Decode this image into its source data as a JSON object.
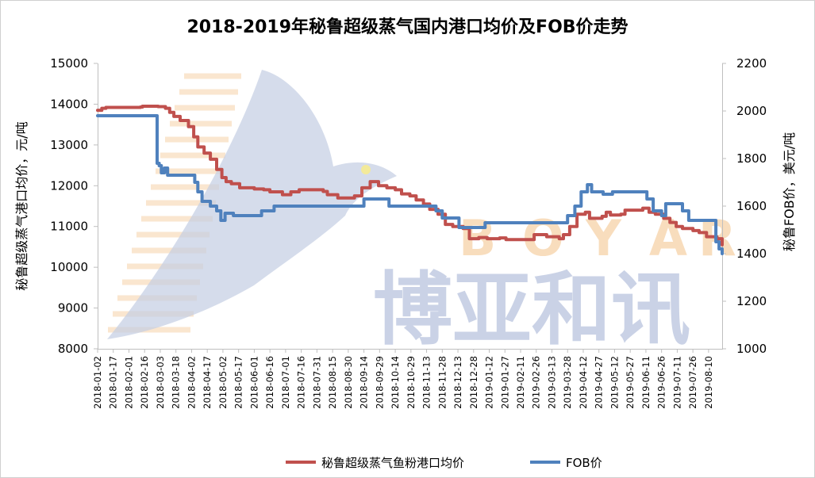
{
  "title": "2018-2019年秘鲁超级蒸气国内港口均价及FOB价走势",
  "watermark": {
    "letters": [
      "B",
      "O",
      "Y",
      "A",
      "R"
    ],
    "chinese": "博亚和讯"
  },
  "colors": {
    "series_domestic": "#c0504d",
    "series_fob": "#4f81bd",
    "axis": "#bfbfbf"
  },
  "chart_data": {
    "type": "line",
    "y_left": {
      "label": "秘鲁超级蒸气港口均价，元/吨",
      "range": [
        8000,
        15000
      ],
      "ticks": [
        "8000",
        "9000",
        "10000",
        "11000",
        "12000",
        "13000",
        "14000",
        "15000"
      ]
    },
    "y_right": {
      "label": "秘鲁FOB价，美元/吨",
      "range": [
        1000,
        2200
      ],
      "ticks": [
        "1000",
        "1200",
        "1400",
        "1600",
        "1800",
        "2000",
        "2200"
      ]
    },
    "x_start": "2018-01-02",
    "x_end": "2019-08-23",
    "x_ticks": [
      "2018-01-02",
      "2018-01-17",
      "2018-02-01",
      "2018-02-16",
      "2018-03-03",
      "2018-03-18",
      "2018-04-02",
      "2018-04-17",
      "2018-05-02",
      "2018-05-17",
      "2018-06-01",
      "2018-06-16",
      "2018-07-01",
      "2018-07-16",
      "2018-07-31",
      "2018-08-15",
      "2018-08-30",
      "2018-09-14",
      "2018-09-29",
      "2018-10-14",
      "2018-10-29",
      "2018-11-13",
      "2018-11-28",
      "2018-12-13",
      "2018-12-28",
      "2019-01-12",
      "2019-01-27",
      "2019-02-11",
      "2019-02-26",
      "2019-03-13",
      "2019-03-28",
      "2019-04-12",
      "2019-04-27",
      "2019-05-12",
      "2019-05-27",
      "2019-06-11",
      "2019-06-26",
      "2019-07-11",
      "2019-07-26",
      "2019-08-10"
    ],
    "grid": false,
    "legend_position": "bottom",
    "series": [
      {
        "name": "秘鲁超级蒸气鱼粉港口均价",
        "axis": "left",
        "points": [
          [
            "2018-01-02",
            13850
          ],
          [
            "2018-01-06",
            13900
          ],
          [
            "2018-01-10",
            13920
          ],
          [
            "2018-02-12",
            13930
          ],
          [
            "2018-02-14",
            13950
          ],
          [
            "2018-03-01",
            13940
          ],
          [
            "2018-03-08",
            13900
          ],
          [
            "2018-03-12",
            13800
          ],
          [
            "2018-03-16",
            13700
          ],
          [
            "2018-03-22",
            13600
          ],
          [
            "2018-03-30",
            13450
          ],
          [
            "2018-04-04",
            13200
          ],
          [
            "2018-04-08",
            12950
          ],
          [
            "2018-04-14",
            12800
          ],
          [
            "2018-04-20",
            12650
          ],
          [
            "2018-04-26",
            12400
          ],
          [
            "2018-05-01",
            12200
          ],
          [
            "2018-05-05",
            12100
          ],
          [
            "2018-05-10",
            12050
          ],
          [
            "2018-05-18",
            11950
          ],
          [
            "2018-06-01",
            11920
          ],
          [
            "2018-06-10",
            11900
          ],
          [
            "2018-06-16",
            11850
          ],
          [
            "2018-06-28",
            11780
          ],
          [
            "2018-07-06",
            11850
          ],
          [
            "2018-07-14",
            11900
          ],
          [
            "2018-08-06",
            11860
          ],
          [
            "2018-08-10",
            11780
          ],
          [
            "2018-08-20",
            11700
          ],
          [
            "2018-09-05",
            11750
          ],
          [
            "2018-09-12",
            11950
          ],
          [
            "2018-09-20",
            12100
          ],
          [
            "2018-09-28",
            12000
          ],
          [
            "2018-10-06",
            11950
          ],
          [
            "2018-10-14",
            11900
          ],
          [
            "2018-10-20",
            11800
          ],
          [
            "2018-10-28",
            11750
          ],
          [
            "2018-11-03",
            11650
          ],
          [
            "2018-11-10",
            11550
          ],
          [
            "2018-11-16",
            11420
          ],
          [
            "2018-11-24",
            11300
          ],
          [
            "2018-12-01",
            11050
          ],
          [
            "2018-12-08",
            11000
          ],
          [
            "2018-12-18",
            10950
          ],
          [
            "2018-12-24",
            10700
          ],
          [
            "2019-01-02",
            10730
          ],
          [
            "2019-01-10",
            10700
          ],
          [
            "2019-01-22",
            10720
          ],
          [
            "2019-01-28",
            10680
          ],
          [
            "2019-02-20",
            10680
          ],
          [
            "2019-02-24",
            10800
          ],
          [
            "2019-03-08",
            10750
          ],
          [
            "2019-03-20",
            10700
          ],
          [
            "2019-03-24",
            10800
          ],
          [
            "2019-03-30",
            11000
          ],
          [
            "2019-04-06",
            11300
          ],
          [
            "2019-04-14",
            11350
          ],
          [
            "2019-04-18",
            11200
          ],
          [
            "2019-04-30",
            11250
          ],
          [
            "2019-05-04",
            11350
          ],
          [
            "2019-05-08",
            11280
          ],
          [
            "2019-05-18",
            11300
          ],
          [
            "2019-05-22",
            11400
          ],
          [
            "2019-06-08",
            11450
          ],
          [
            "2019-06-14",
            11350
          ],
          [
            "2019-06-20",
            11300
          ],
          [
            "2019-06-28",
            11200
          ],
          [
            "2019-07-04",
            11100
          ],
          [
            "2019-07-10",
            11000
          ],
          [
            "2019-07-16",
            10950
          ],
          [
            "2019-07-26",
            10900
          ],
          [
            "2019-08-01",
            10850
          ],
          [
            "2019-08-08",
            10750
          ],
          [
            "2019-08-18",
            10700
          ],
          [
            "2019-08-23",
            10550
          ]
        ]
      },
      {
        "name": "FOB价",
        "axis": "right",
        "points": [
          [
            "2018-01-02",
            1980
          ],
          [
            "2018-02-27",
            1980
          ],
          [
            "2018-02-28",
            1780
          ],
          [
            "2018-03-02",
            1770
          ],
          [
            "2018-03-04",
            1740
          ],
          [
            "2018-03-07",
            1760
          ],
          [
            "2018-03-10",
            1730
          ],
          [
            "2018-04-01",
            1730
          ],
          [
            "2018-04-05",
            1700
          ],
          [
            "2018-04-08",
            1660
          ],
          [
            "2018-04-12",
            1620
          ],
          [
            "2018-04-20",
            1600
          ],
          [
            "2018-04-26",
            1580
          ],
          [
            "2018-04-30",
            1540
          ],
          [
            "2018-05-02",
            1540
          ],
          [
            "2018-05-04",
            1570
          ],
          [
            "2018-05-10",
            1570
          ],
          [
            "2018-05-12",
            1560
          ],
          [
            "2018-06-06",
            1560
          ],
          [
            "2018-06-08",
            1580
          ],
          [
            "2018-06-20",
            1600
          ],
          [
            "2018-09-12",
            1600
          ],
          [
            "2018-09-14",
            1630
          ],
          [
            "2018-10-05",
            1630
          ],
          [
            "2018-10-08",
            1600
          ],
          [
            "2018-11-18",
            1600
          ],
          [
            "2018-11-22",
            1580
          ],
          [
            "2018-11-28",
            1550
          ],
          [
            "2018-12-14",
            1510
          ],
          [
            "2019-01-05",
            1510
          ],
          [
            "2019-01-08",
            1530
          ],
          [
            "2019-03-26",
            1530
          ],
          [
            "2019-03-28",
            1560
          ],
          [
            "2019-04-04",
            1600
          ],
          [
            "2019-04-10",
            1660
          ],
          [
            "2019-04-16",
            1690
          ],
          [
            "2019-04-20",
            1660
          ],
          [
            "2019-05-01",
            1650
          ],
          [
            "2019-05-10",
            1660
          ],
          [
            "2019-06-02",
            1660
          ],
          [
            "2019-06-12",
            1630
          ],
          [
            "2019-06-18",
            1580
          ],
          [
            "2019-06-26",
            1560
          ],
          [
            "2019-06-30",
            1610
          ],
          [
            "2019-07-12",
            1610
          ],
          [
            "2019-07-16",
            1580
          ],
          [
            "2019-07-22",
            1540
          ],
          [
            "2019-08-14",
            1540
          ],
          [
            "2019-08-17",
            1450
          ],
          [
            "2019-08-20",
            1420
          ],
          [
            "2019-08-23",
            1400
          ]
        ]
      }
    ]
  }
}
